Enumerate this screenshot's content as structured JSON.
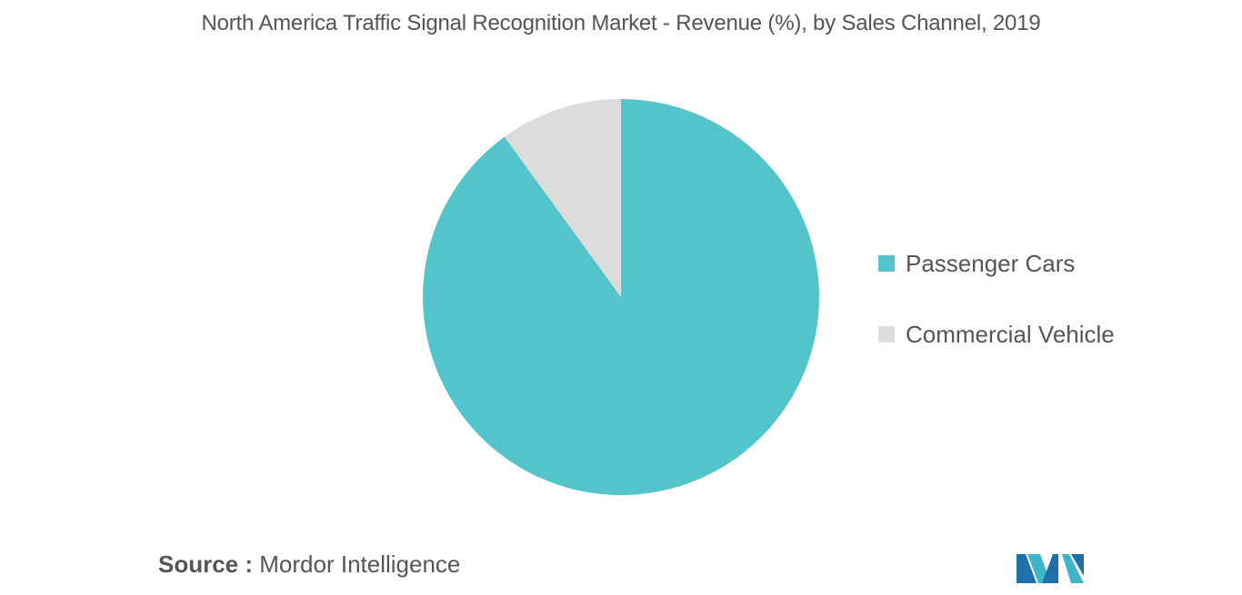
{
  "chart_data": {
    "type": "pie",
    "title": "North America Traffic Signal Recognition Market - Revenue (%), by Sales Channel, 2019",
    "categories": [
      "Passenger Cars",
      "Commercial Vehicle"
    ],
    "values": [
      90,
      10
    ],
    "colors": [
      "#52c4ca",
      "#dcdcdc"
    ],
    "start_angle_deg": 0,
    "direction": "clockwise",
    "legend_position": "right"
  },
  "source": {
    "label": "Source :",
    "text": "Mordor Intelligence"
  },
  "logo": {
    "icon": "mordor-intelligence-logo-icon",
    "colors": [
      "#1f6fa8",
      "#3fb6c8"
    ]
  }
}
